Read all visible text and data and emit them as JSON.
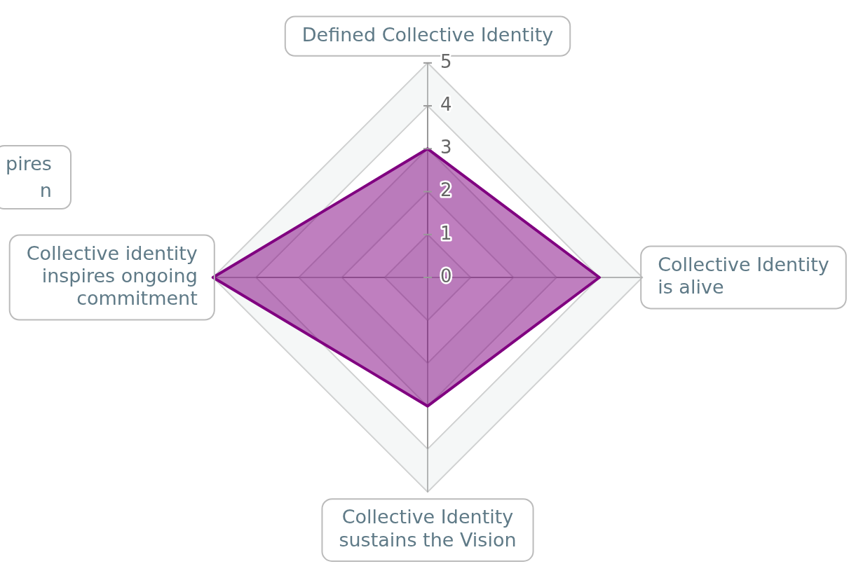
{
  "chart_data": {
    "type": "radar",
    "categories": [
      "Defined Collective Identity",
      "Collective Identity is alive",
      "Collective Identity sustains the Vision",
      "Collective identity inspires ongoing commitment"
    ],
    "series": [
      {
        "color": "#800080",
        "values": [
          3,
          4,
          3,
          5
        ]
      }
    ],
    "ylim": [
      0,
      5
    ],
    "yticks": [
      0,
      1,
      2,
      3,
      4,
      5
    ],
    "grid": true,
    "legend": false,
    "marker": "none",
    "annotations": [
      "pires\nn"
    ]
  }
}
